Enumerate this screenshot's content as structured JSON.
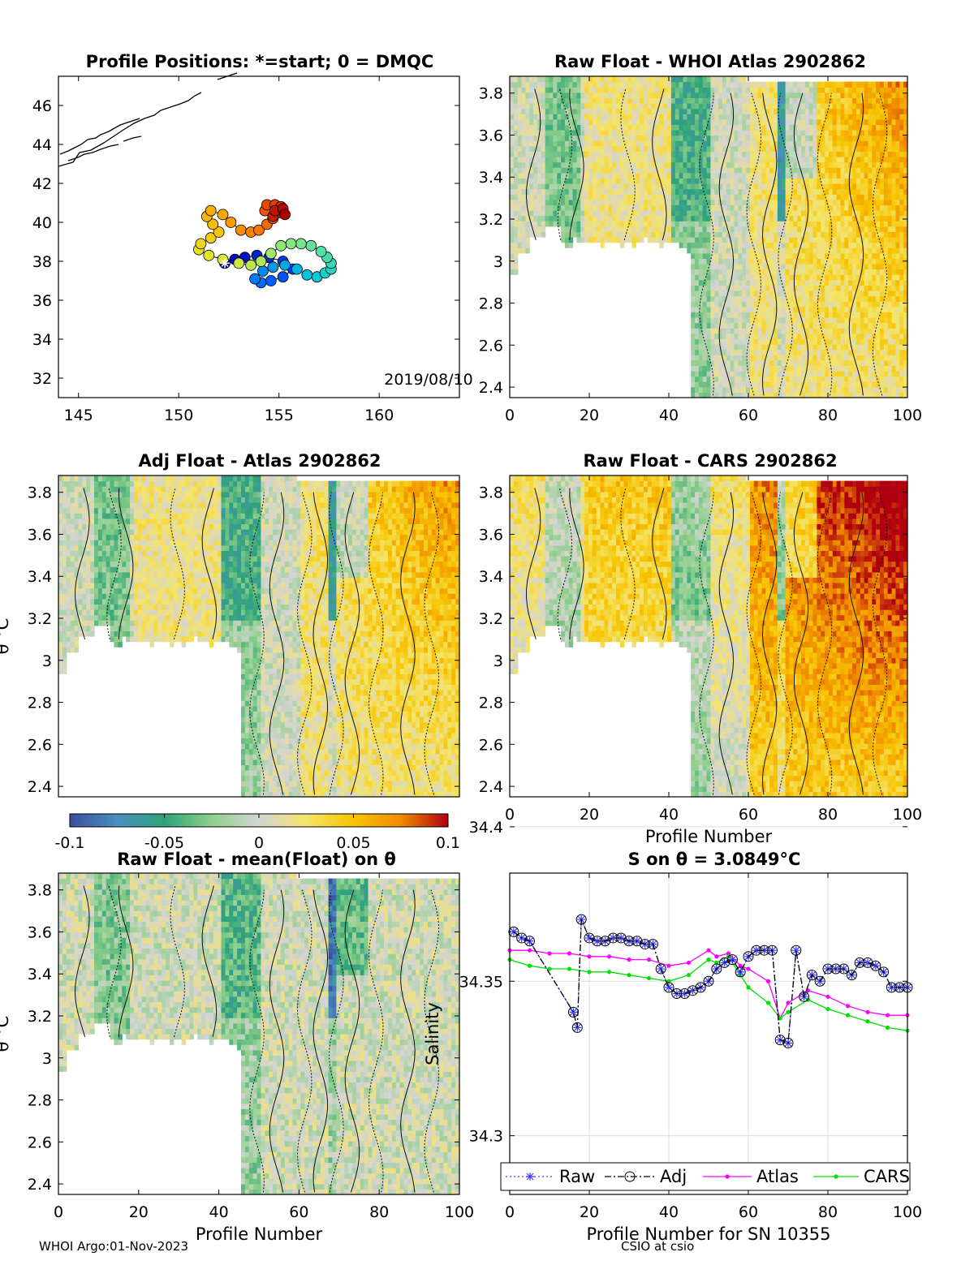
{
  "figure": {
    "footer_left": "WHOI Argo:01-Nov-2023",
    "footer_right": "CSIO at csio"
  },
  "colorbar": {
    "ticks": [
      "-0.1",
      "-0.05",
      "0",
      "0.05",
      "0.1"
    ],
    "colors": [
      "#3b4fa0",
      "#4a8fc0",
      "#2ea37a",
      "#8fd08a",
      "#d4d4d4",
      "#f4e46a",
      "#f7c400",
      "#f08a00",
      "#b00010"
    ]
  },
  "chart_data": [
    {
      "type": "scatter",
      "title": "Profile Positions: *=start; 0 = DMQC",
      "xlim": [
        144,
        164
      ],
      "ylim": [
        31,
        47.5
      ],
      "xticks": [
        "145",
        "150",
        "155",
        "160"
      ],
      "yticks": [
        "32",
        "34",
        "36",
        "38",
        "40",
        "42",
        "44",
        "46"
      ],
      "annotation": "2019/08/10",
      "start_marker": [
        152.3,
        37.9
      ],
      "track": [
        [
          152.3,
          37.9
        ],
        [
          152.8,
          38.1
        ],
        [
          153.3,
          38.2
        ],
        [
          153.9,
          38.3
        ],
        [
          154.5,
          38.2
        ],
        [
          155.2,
          38.0
        ],
        [
          155.7,
          37.6
        ],
        [
          155.2,
          37.2
        ],
        [
          154.6,
          37.0
        ],
        [
          154.1,
          36.9
        ],
        [
          153.8,
          37.1
        ],
        [
          154.2,
          37.5
        ],
        [
          154.7,
          37.7
        ],
        [
          155.3,
          37.8
        ],
        [
          155.9,
          37.6
        ],
        [
          156.4,
          37.3
        ],
        [
          156.9,
          37.2
        ],
        [
          157.3,
          37.4
        ],
        [
          157.6,
          37.6
        ],
        [
          157.6,
          37.9
        ],
        [
          157.4,
          38.2
        ],
        [
          157.1,
          38.5
        ],
        [
          156.6,
          38.8
        ],
        [
          156.1,
          38.9
        ],
        [
          155.6,
          38.9
        ],
        [
          155.1,
          38.8
        ],
        [
          154.6,
          38.4
        ],
        [
          154.1,
          38.0
        ],
        [
          153.6,
          37.8
        ],
        [
          153.0,
          37.9
        ],
        [
          152.2,
          38.1
        ],
        [
          151.5,
          38.3
        ],
        [
          151.0,
          38.6
        ],
        [
          151.1,
          38.9
        ],
        [
          151.6,
          39.2
        ],
        [
          152.0,
          39.5
        ],
        [
          151.7,
          39.9
        ],
        [
          151.4,
          40.3
        ],
        [
          151.6,
          40.6
        ],
        [
          152.2,
          40.4
        ],
        [
          152.6,
          40.0
        ],
        [
          153.1,
          39.6
        ],
        [
          153.6,
          39.5
        ],
        [
          154.0,
          39.6
        ],
        [
          154.4,
          39.9
        ],
        [
          154.7,
          40.2
        ],
        [
          154.3,
          40.6
        ],
        [
          154.4,
          40.9
        ],
        [
          154.8,
          40.9
        ],
        [
          155.1,
          40.8
        ],
        [
          155.0,
          40.5
        ],
        [
          154.7,
          40.3
        ],
        [
          154.8,
          40.6
        ],
        [
          155.2,
          40.7
        ],
        [
          155.3,
          40.4
        ]
      ]
    },
    {
      "type": "heatmap",
      "title": "Raw Float - WHOI Atlas  2902862",
      "xlim": [
        0,
        100
      ],
      "ylim": [
        2.35,
        3.88
      ],
      "xticks": [
        "0",
        "20",
        "40",
        "60",
        "80",
        "100"
      ],
      "yticks": [
        "2.4",
        "2.6",
        "2.8",
        "3",
        "3.2",
        "3.4",
        "3.6",
        "3.8"
      ],
      "xlabel": "",
      "ylabel": ""
    },
    {
      "type": "heatmap",
      "title": "Adj Float - Atlas  2902862",
      "xlim": [
        0,
        100
      ],
      "ylim": [
        2.35,
        3.88
      ],
      "xticks": [],
      "yticks": [
        "2.4",
        "2.6",
        "2.8",
        "3",
        "3.2",
        "3.4",
        "3.6",
        "3.8"
      ],
      "xlabel": "",
      "ylabel": "θ °C"
    },
    {
      "type": "heatmap",
      "title": "Raw Float - CARS  2902862",
      "xlim": [
        0,
        100
      ],
      "ylim": [
        2.35,
        3.88
      ],
      "xticks": [
        "0",
        "20",
        "40",
        "60",
        "80",
        "100"
      ],
      "yticks": [
        "2.4",
        "2.6",
        "2.8",
        "3",
        "3.2",
        "3.4",
        "3.6",
        "3.8"
      ],
      "xlabel": "Profile Number",
      "ylabel": ""
    },
    {
      "type": "heatmap",
      "title": "Raw Float - mean(Float) on θ",
      "xlim": [
        0,
        100
      ],
      "ylim": [
        2.35,
        3.88
      ],
      "xticks": [
        "0",
        "20",
        "40",
        "60",
        "80",
        "100"
      ],
      "yticks": [
        "2.4",
        "2.6",
        "2.8",
        "3",
        "3.2",
        "3.4",
        "3.6",
        "3.8"
      ],
      "xlabel": "Profile Number",
      "ylabel": "θ °C"
    },
    {
      "type": "line",
      "title": "S on θ = 3.0849°C",
      "xlabel": "Profile Number for SN 10355",
      "ylabel": "Salinity",
      "xlim": [
        0,
        100
      ],
      "ylim": [
        34.281,
        34.385
      ],
      "xticks": [
        "0",
        "20",
        "40",
        "60",
        "80",
        "100"
      ],
      "yticks": [
        "34.3",
        "34.35",
        "34.4"
      ],
      "grid": true,
      "legend_position": "below",
      "series": [
        {
          "name": "Raw",
          "x": [
            1,
            3,
            5,
            16,
            17,
            18,
            20,
            22,
            24,
            26,
            28,
            30,
            32,
            34,
            36,
            38,
            40,
            42,
            44,
            46,
            48,
            50,
            52,
            54,
            56,
            58,
            60,
            62,
            64,
            66,
            68,
            70,
            72,
            74,
            76,
            78,
            80,
            82,
            84,
            86,
            88,
            90,
            92,
            94,
            96,
            98,
            100
          ],
          "values": [
            34.366,
            34.364,
            34.363,
            34.34,
            34.335,
            34.37,
            34.364,
            34.363,
            34.363,
            34.364,
            34.364,
            34.363,
            34.363,
            34.362,
            34.362,
            34.354,
            34.348,
            34.346,
            34.346,
            34.347,
            34.348,
            34.35,
            34.354,
            34.356,
            34.357,
            34.353,
            34.358,
            34.36,
            34.36,
            34.36,
            34.331,
            34.33,
            34.36,
            34.345,
            34.352,
            34.35,
            34.354,
            34.354,
            34.354,
            34.352,
            34.356,
            34.356,
            34.355,
            34.353,
            34.348,
            34.348,
            34.348
          ]
        },
        {
          "name": "Adj",
          "x": [
            1,
            3,
            5,
            16,
            17,
            18,
            20,
            22,
            24,
            26,
            28,
            30,
            32,
            34,
            36,
            38,
            40,
            42,
            44,
            46,
            48,
            50,
            52,
            54,
            56,
            58,
            60,
            62,
            64,
            66,
            68,
            70,
            72,
            74,
            76,
            78,
            80,
            82,
            84,
            86,
            88,
            90,
            92,
            94,
            96,
            98,
            100
          ],
          "values": [
            34.366,
            34.364,
            34.363,
            34.34,
            34.335,
            34.37,
            34.364,
            34.363,
            34.363,
            34.364,
            34.364,
            34.363,
            34.363,
            34.362,
            34.362,
            34.354,
            34.348,
            34.346,
            34.346,
            34.347,
            34.348,
            34.35,
            34.354,
            34.356,
            34.357,
            34.353,
            34.358,
            34.36,
            34.36,
            34.36,
            34.331,
            34.33,
            34.36,
            34.345,
            34.352,
            34.35,
            34.354,
            34.354,
            34.354,
            34.352,
            34.356,
            34.356,
            34.355,
            34.353,
            34.348,
            34.348,
            34.348
          ]
        },
        {
          "name": "Atlas",
          "x": [
            0,
            5,
            10,
            15,
            20,
            25,
            30,
            35,
            40,
            45,
            50,
            52,
            55,
            58,
            60,
            65,
            68,
            70,
            75,
            80,
            85,
            90,
            95,
            100
          ],
          "values": [
            34.36,
            34.36,
            34.359,
            34.359,
            34.358,
            34.358,
            34.357,
            34.357,
            34.355,
            34.356,
            34.36,
            34.358,
            34.359,
            34.355,
            34.354,
            34.35,
            34.338,
            34.343,
            34.347,
            34.345,
            34.342,
            34.34,
            34.339,
            34.339
          ]
        },
        {
          "name": "CARS",
          "x": [
            0,
            5,
            10,
            15,
            20,
            25,
            30,
            35,
            40,
            45,
            50,
            52,
            55,
            58,
            60,
            65,
            68,
            70,
            75,
            80,
            85,
            90,
            95,
            100
          ],
          "values": [
            34.357,
            34.355,
            34.354,
            34.354,
            34.353,
            34.353,
            34.352,
            34.351,
            34.35,
            34.352,
            34.357,
            34.356,
            34.358,
            34.352,
            34.348,
            34.343,
            34.338,
            34.34,
            34.344,
            34.341,
            34.339,
            34.337,
            34.335,
            34.334
          ]
        }
      ]
    }
  ]
}
